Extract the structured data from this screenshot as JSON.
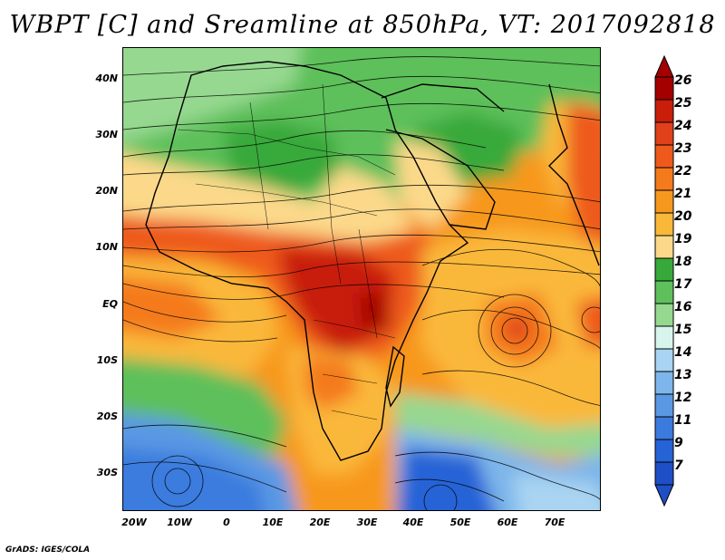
{
  "title": "WBPT [C] and Sreamline at 850hPa, VT: 2017092818",
  "footer": "GrADS: IGES/COLA",
  "lat_labels": [
    "40N",
    "30N",
    "20N",
    "10N",
    "EQ",
    "10S",
    "20S",
    "30S"
  ],
  "lon_labels": [
    "20W",
    "10W",
    "0",
    "10E",
    "20E",
    "30E",
    "40E",
    "50E",
    "60E",
    "70E"
  ],
  "colorbar": {
    "labels": [
      "26",
      "25",
      "24",
      "23",
      "22",
      "21",
      "20",
      "19",
      "18",
      "17",
      "16",
      "15",
      "14",
      "13",
      "12",
      "11",
      "9",
      "7"
    ],
    "colors": [
      "#a50000",
      "#c81e0a",
      "#e0401a",
      "#ee5a1c",
      "#f47a1c",
      "#f7981e",
      "#fab83a",
      "#fcd98a",
      "#37a93a",
      "#5dc05a",
      "#96d890",
      "#d7f5ec",
      "#a9d4f2",
      "#7db6ea",
      "#5a98e4",
      "#3b7bde",
      "#2563d6",
      "#1f4fc6"
    ]
  },
  "colors": {
    "hot": "#e0401a",
    "warm": "#f47a1c",
    "mild": "#fab83a",
    "light": "#fcd98a",
    "green": "#5dc05a",
    "lightgreen": "#96d890",
    "blue": "#5a98e4",
    "darkblue": "#2563d6"
  }
}
